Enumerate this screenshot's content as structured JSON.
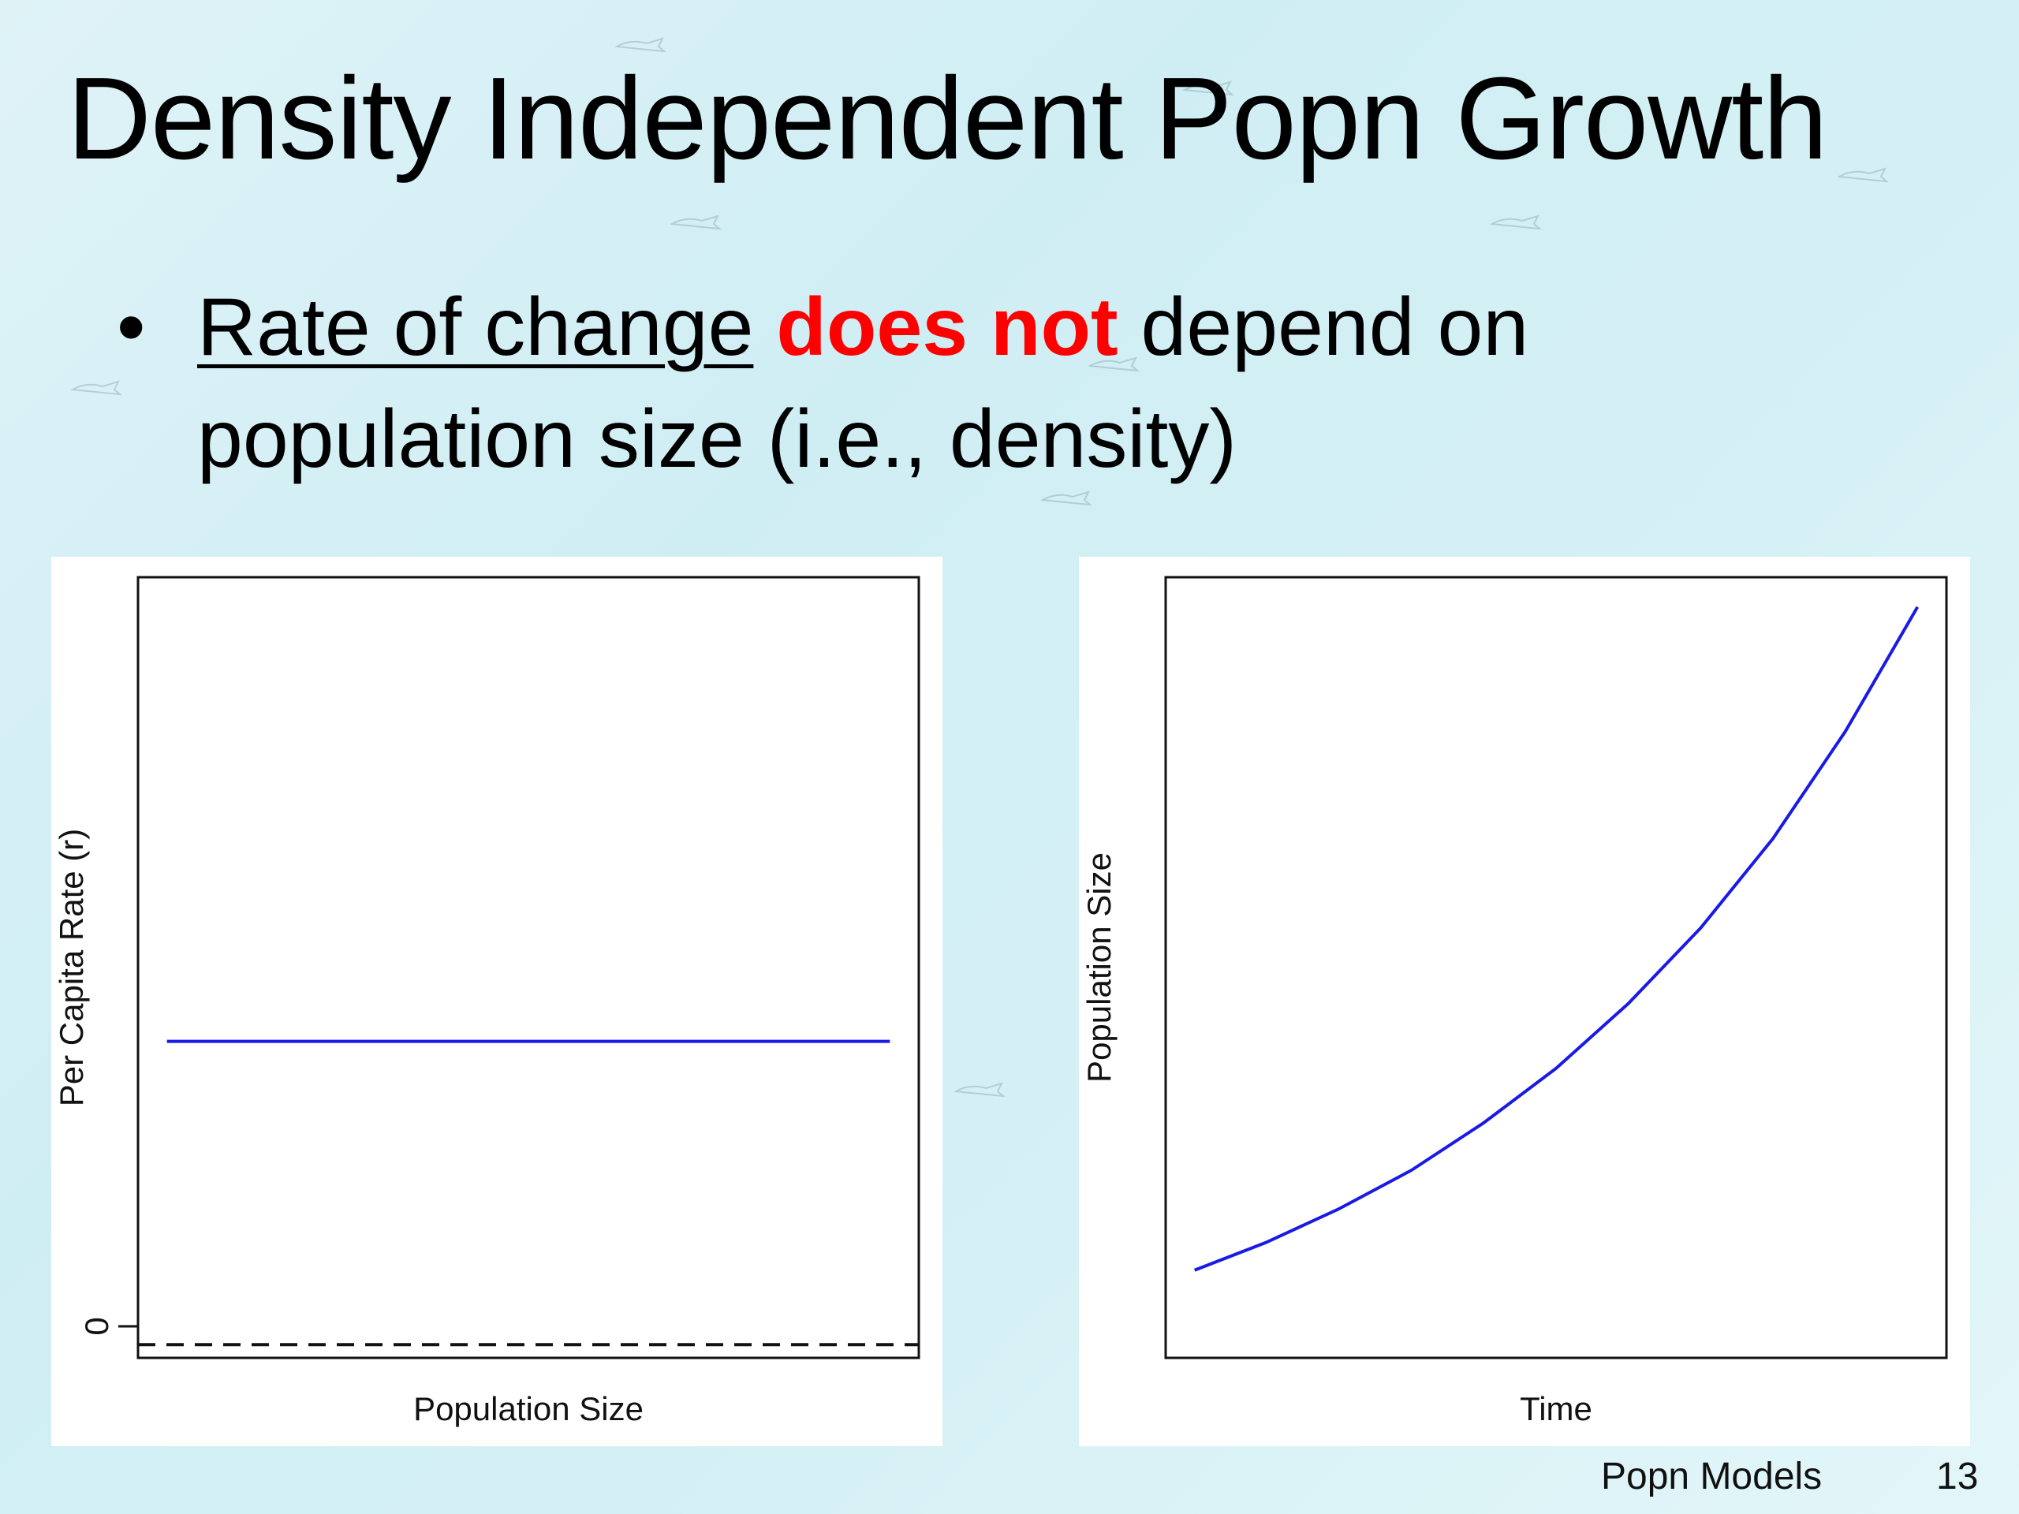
{
  "slide": {
    "title": "Density Independent Popn Growth",
    "bullet": {
      "underlined": "Rate of change",
      "emphasis": "does not",
      "rest_line1": "depend on",
      "line2": "population size (i.e., density)"
    },
    "footer_label": "Popn Models",
    "page_number": "13"
  },
  "colors": {
    "background": "#d6f1f5",
    "emphasis": "#ff0000",
    "series": "#1a1ae6"
  },
  "chart_data": [
    {
      "type": "line",
      "xlabel": "Population Size",
      "ylabel": "Per Capita Rate (r)",
      "y_tick_labels": [
        "0"
      ],
      "grid": false,
      "series": [
        {
          "x": [
            0,
            1
          ],
          "y": [
            1,
            1
          ],
          "style": "solid"
        }
      ],
      "reference_lines": [
        {
          "y": 0,
          "style": "dashed"
        }
      ]
    },
    {
      "type": "line",
      "xlabel": "Time",
      "ylabel": "Population Size",
      "grid": false,
      "series": [
        {
          "x": [
            0,
            1,
            2,
            3,
            4,
            5,
            6,
            7,
            8,
            9,
            10
          ],
          "y": [
            1.0,
            1.16,
            1.35,
            1.57,
            1.84,
            2.15,
            2.52,
            2.95,
            3.46,
            4.07,
            4.78
          ],
          "style": "solid"
        }
      ]
    }
  ]
}
